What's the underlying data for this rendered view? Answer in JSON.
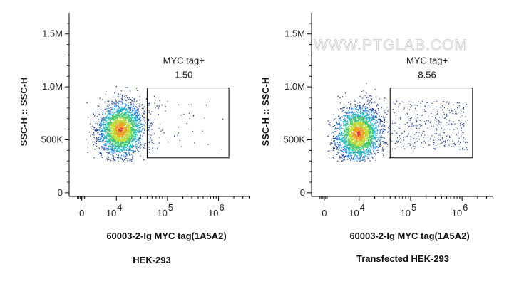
{
  "watermark": "WWW.PTGLAB.COM",
  "colors": {
    "density_ramp": [
      "#1f3c88",
      "#1f7bd6",
      "#22b5c9",
      "#3cc46a",
      "#b7d930",
      "#f0a020",
      "#e0392b"
    ],
    "gate": "#000000",
    "axis": "#000000"
  },
  "chart_data": [
    {
      "type": "scatter",
      "subtype": "flow-cytometry-density-dot-plot",
      "panel_label": "HEK-293",
      "xlabel": "60003-2-Ig MYC tag(1A5A2)",
      "ylabel": "SSC-H :: SSC-H",
      "x_scale": "biexponential",
      "x_ticks": [
        "0",
        "10 4",
        "10 5",
        "10 6"
      ],
      "x_tick_values": [
        0,
        10000,
        100000,
        1000000
      ],
      "y_ticks": [
        "0",
        "500K",
        "1.0M",
        "1.5M"
      ],
      "y_tick_values": [
        0,
        500000,
        1000000,
        1500000
      ],
      "ylim": [
        0,
        1700000
      ],
      "gate": {
        "name": "MYC tag+",
        "percent": "1.50",
        "x_range": [
          40000,
          1600000
        ],
        "y_range": [
          330000,
          990000
        ]
      },
      "population": {
        "center_x": 12000,
        "center_y": 600000,
        "gated_fraction": 0.015
      },
      "grid": false
    },
    {
      "type": "scatter",
      "subtype": "flow-cytometry-density-dot-plot",
      "panel_label": "Transfected HEK-293",
      "xlabel": "60003-2-Ig MYC tag(1A5A2)",
      "ylabel": "SSC-H :: SSC-H",
      "x_scale": "biexponential",
      "x_ticks": [
        "0",
        "10 4",
        "10 5",
        "10 6"
      ],
      "x_tick_values": [
        0,
        10000,
        100000,
        1000000
      ],
      "y_ticks": [
        "0",
        "500K",
        "1.0M",
        "1.5M"
      ],
      "y_tick_values": [
        0,
        500000,
        1000000,
        1500000
      ],
      "ylim": [
        0,
        1700000
      ],
      "gate": {
        "name": "MYC tag+",
        "percent": "8.56",
        "x_range": [
          40000,
          1600000
        ],
        "y_range": [
          330000,
          990000
        ]
      },
      "population": {
        "center_x": 9000,
        "center_y": 560000,
        "gated_fraction": 0.0856
      },
      "grid": false
    }
  ]
}
